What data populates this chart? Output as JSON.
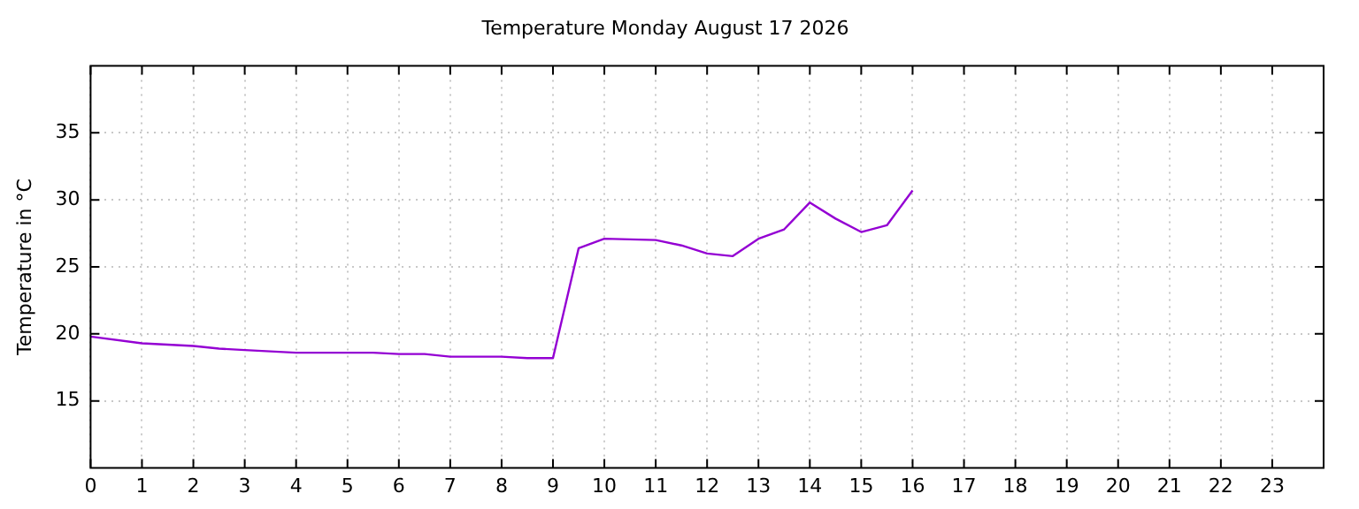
{
  "chart_data": {
    "type": "line",
    "title": "Temperature Monday August 17 2026",
    "ylabel": "Temperature in °C",
    "x": [
      0,
      1,
      2,
      2.5,
      3,
      4,
      5,
      5.5,
      6,
      6.5,
      7,
      8,
      8.5,
      9,
      9.5,
      10,
      11,
      11.5,
      12,
      12.5,
      13,
      13.5,
      14,
      14.5,
      15,
      15.5,
      16
    ],
    "series": [
      {
        "color": "#9400d3",
        "values": [
          19.8,
          19.3,
          19.1,
          18.9,
          18.8,
          18.6,
          18.6,
          18.6,
          18.5,
          18.5,
          18.3,
          18.3,
          18.2,
          18.2,
          26.4,
          27.1,
          27.0,
          26.6,
          26.0,
          25.8,
          27.1,
          27.8,
          29.8,
          28.6,
          27.6,
          28.1,
          30.7
        ]
      }
    ],
    "xlim": [
      0,
      24
    ],
    "xticks": [
      0,
      1,
      2,
      3,
      4,
      5,
      6,
      7,
      8,
      9,
      10,
      11,
      12,
      13,
      14,
      15,
      16,
      17,
      18,
      19,
      20,
      21,
      22,
      23
    ],
    "ylim": [
      10,
      40
    ],
    "yticks": [
      15,
      20,
      25,
      30,
      35
    ],
    "grid": true,
    "legend": false,
    "marker": "none",
    "line_style": "solid"
  }
}
